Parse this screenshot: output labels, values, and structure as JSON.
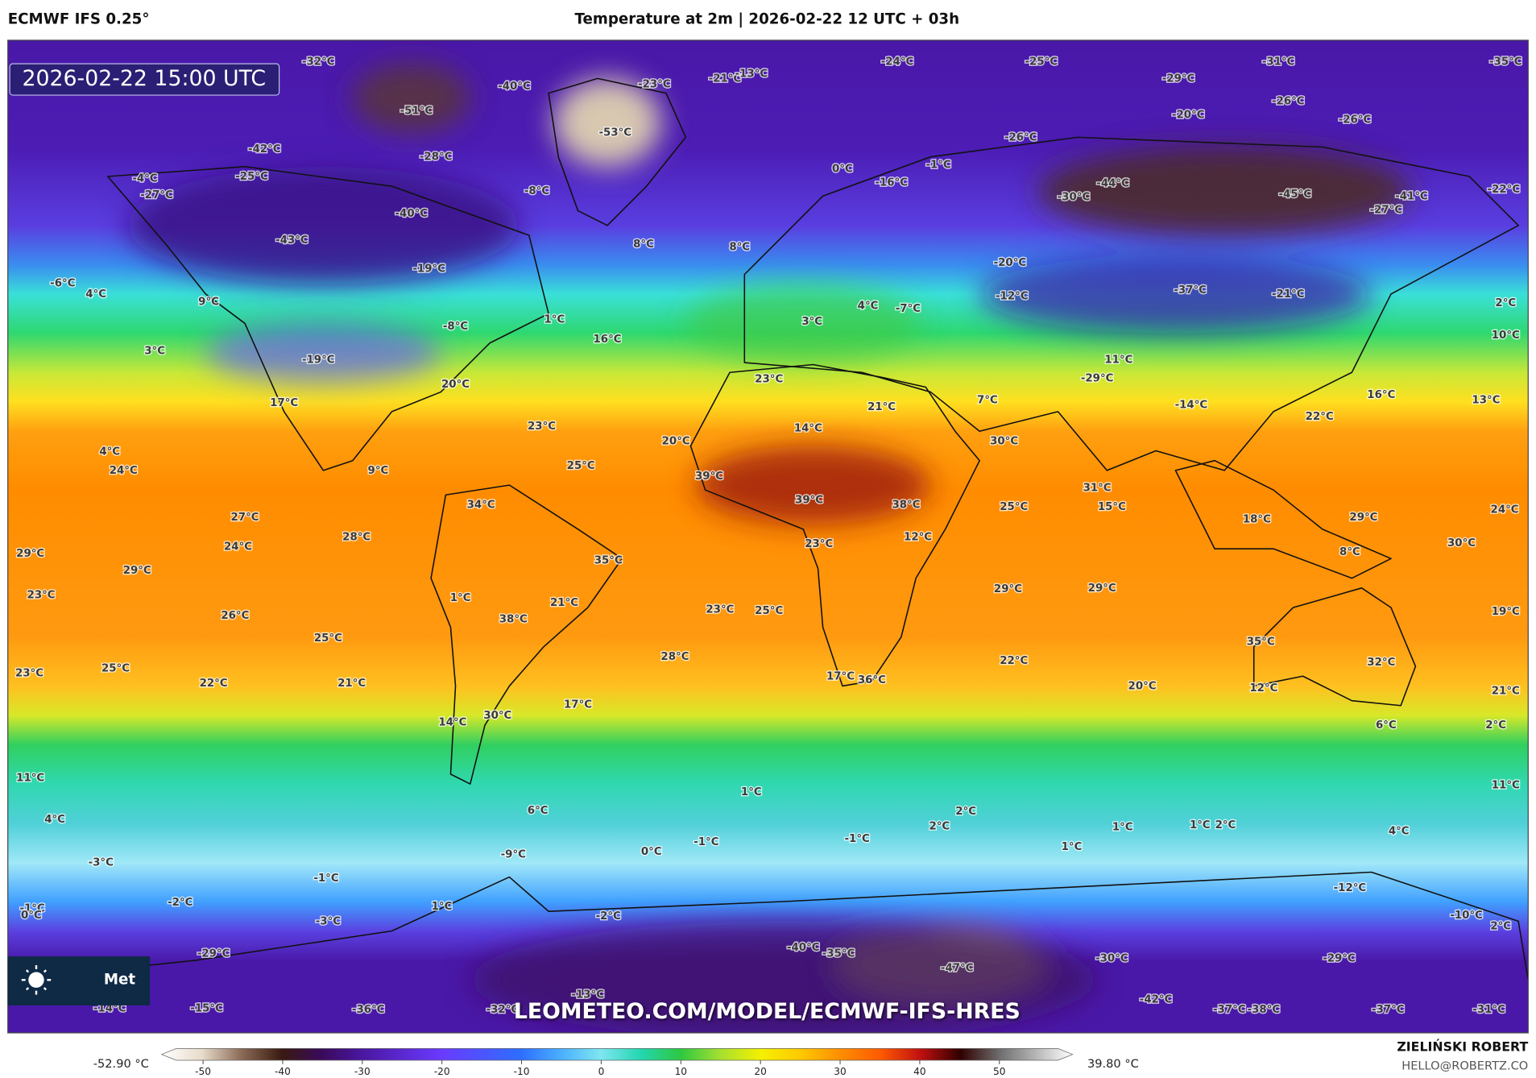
{
  "header": {
    "model": "ECMWF IFS 0.25°",
    "title": "Temperature at 2m | 2026-02-22 12 UTC + 03h"
  },
  "map": {
    "timestamp": "2026-02-22 15:00 UTC",
    "watermark": "LEOMETEO.COM/MODEL/ECMWF-IFS-HRES",
    "logo": "Met",
    "labels": [
      "-53°C",
      "-51°C",
      "-40°C",
      "-32°C",
      "-23°C",
      "-21°C",
      "-13°C",
      "-24°C",
      "-25°C",
      "-31°C",
      "-35°C",
      "-29°C",
      "-26°C",
      "-20°C",
      "-26°C",
      "-26°C",
      "-42°C",
      "-28°C",
      "-25°C",
      "-4°C",
      "-27°C",
      "-8°C",
      "0°C",
      "-1°C",
      "-16°C",
      "-44°C",
      "-30°C",
      "-45°C",
      "-41°C",
      "-27°C",
      "-22°C",
      "-40°C",
      "-43°C",
      "8°C",
      "8°C",
      "-19°C",
      "-20°C",
      "-6°C",
      "4°C",
      "9°C",
      "-12°C",
      "-37°C",
      "-21°C",
      "2°C",
      "-8°C",
      "1°C",
      "16°C",
      "3°C",
      "4°C",
      "-7°C",
      "10°C",
      "3°C",
      "-19°C",
      "11°C",
      "20°C",
      "23°C",
      "-29°C",
      "17°C",
      "21°C",
      "7°C",
      "-14°C",
      "16°C",
      "13°C",
      "22°C",
      "23°C",
      "14°C",
      "20°C",
      "30°C",
      "4°C",
      "24°C",
      "25°C",
      "9°C",
      "39°C",
      "31°C",
      "39°C",
      "38°C",
      "25°C",
      "15°C",
      "34°C",
      "24°C",
      "27°C",
      "18°C",
      "29°C",
      "28°C",
      "23°C",
      "12°C",
      "30°C",
      "24°C",
      "29°C",
      "8°C",
      "35°C",
      "29°C",
      "23°C",
      "1°C",
      "21°C",
      "29°C",
      "29°C",
      "23°C",
      "25°C",
      "19°C",
      "26°C",
      "38°C",
      "25°C",
      "35°C",
      "32°C",
      "28°C",
      "22°C",
      "23°C",
      "25°C",
      "22°C",
      "21°C",
      "17°C",
      "36°C",
      "20°C",
      "12°C",
      "21°C",
      "30°C",
      "17°C",
      "14°C",
      "6°C",
      "2°C",
      "11°C",
      "11°C",
      "1°C",
      "6°C",
      "4°C",
      "2°C",
      "2°C",
      "1°C",
      "1°C",
      "2°C",
      "4°C",
      "-1°C",
      "-1°C",
      "0°C",
      "1°C",
      "-3°C",
      "-9°C",
      "-1°C",
      "-12°C",
      "-2°C",
      "1°C",
      "-1°C",
      "0°C",
      "-10°C",
      "-3°C",
      "-2°C",
      "2°C",
      "-40°C",
      "-35°C",
      "-30°C",
      "-29°C",
      "-29°C",
      "-47°C",
      "-42°C",
      "-15°C",
      "-14°C",
      "-36°C",
      "-32°C",
      "-13°C",
      "-37°C",
      "-38°C",
      "-37°C",
      "-31°C"
    ]
  },
  "colorbar": {
    "min_label": "-52.90 °C",
    "max_label": "39.80 °C",
    "ticks": [
      -50,
      -40,
      -30,
      -20,
      -10,
      0,
      10,
      20,
      30,
      40,
      50
    ]
  },
  "footer": {
    "author": "ZIELIŃSKI ROBERT",
    "email": "HELLO@ROBERTZ.CO"
  }
}
